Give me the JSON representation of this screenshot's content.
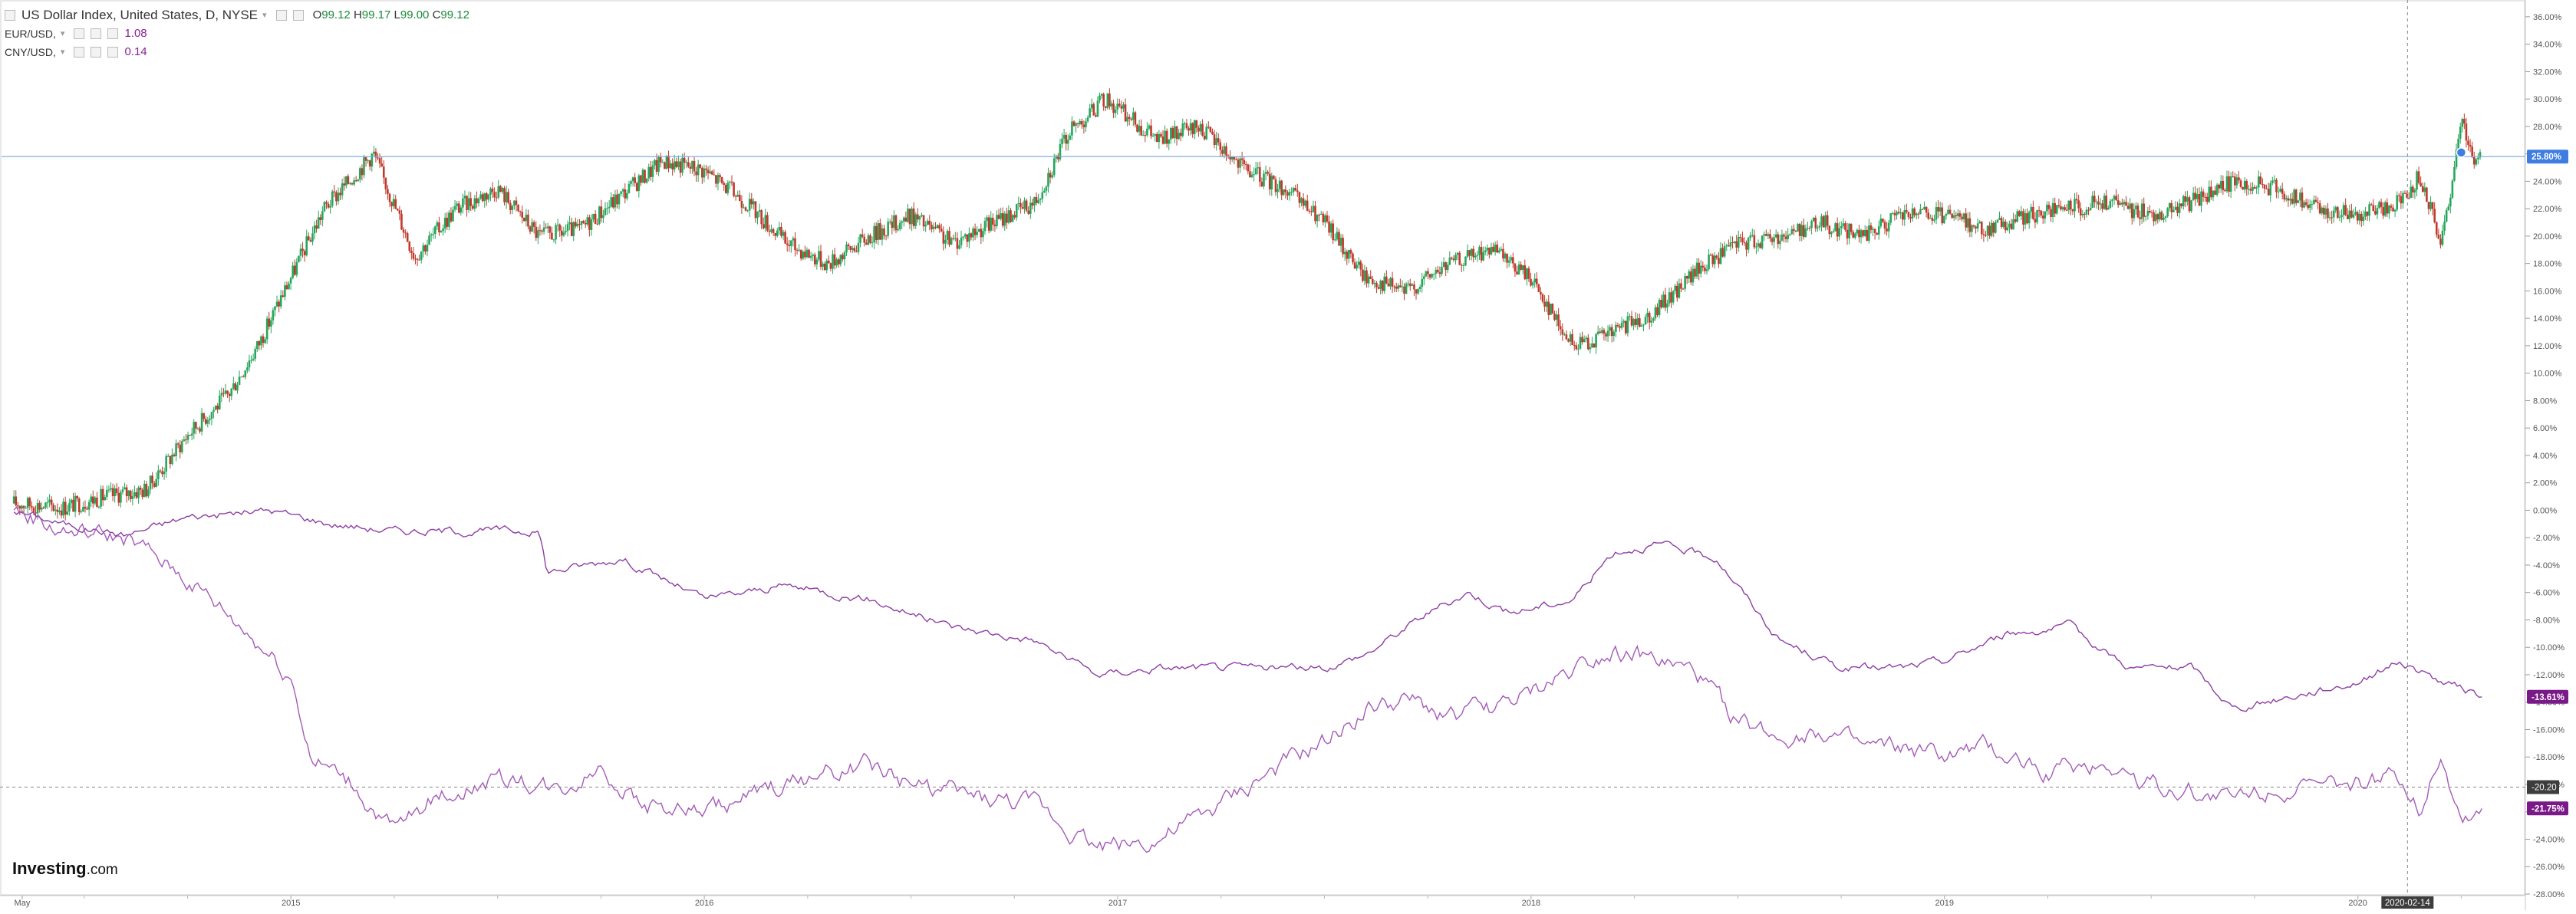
{
  "legend": {
    "main_title": "US Dollar Index, United States, D, NYSE",
    "open_label": "O",
    "open": "99.12",
    "high_label": "H",
    "high": "99.17",
    "low_label": "L",
    "low": "99.00",
    "close_label": "C",
    "close": "99.12",
    "eur_symbol": "EUR/USD,",
    "eur_value": "1.08",
    "cny_symbol": "CNY/USD,",
    "cny_value": "0.14"
  },
  "logo": {
    "text": "Investing",
    "suffix": ".com"
  },
  "chart_data": {
    "type": "line",
    "y_unit": "%",
    "ylim": [
      -28,
      37
    ],
    "y_ticks": [
      "36.00%",
      "34.00%",
      "32.00%",
      "30.00%",
      "28.00%",
      "26.00%",
      "24.00%",
      "22.00%",
      "20.00%",
      "18.00%",
      "16.00%",
      "14.00%",
      "12.00%",
      "10.00%",
      "8.00%",
      "6.00%",
      "4.00%",
      "2.00%",
      "0.00%",
      "-2.00%",
      "-4.00%",
      "-6.00%",
      "-8.00%",
      "-10.00%",
      "-12.00%",
      "-14.00%",
      "-16.00%",
      "-18.00%",
      "-20.00%",
      "-22.00%",
      "-24.00%",
      "-26.00%",
      "-28.00%"
    ],
    "x_ticks": [
      "May",
      "2015",
      "2016",
      "2017",
      "2018",
      "2019",
      "2020"
    ],
    "crosshair": {
      "date_label": "2020-02-14",
      "value_label": "-20.20",
      "value": -20.2
    },
    "price_line_label": "25.80%",
    "price_line_value": 25.8,
    "series": [
      {
        "kind": "candles",
        "color_up": "#26a65b",
        "color_down": "#c0392b",
        "last_label": "25.80%",
        "label_color": "#3f7de0",
        "points": [
          [
            2014.33,
            0.5
          ],
          [
            2014.45,
            0.2
          ],
          [
            2014.55,
            1.0
          ],
          [
            2014.65,
            1.5
          ],
          [
            2014.75,
            5.5
          ],
          [
            2014.85,
            8.5
          ],
          [
            2014.92,
            12.0
          ],
          [
            2015.0,
            17.0
          ],
          [
            2015.08,
            22.0
          ],
          [
            2015.2,
            26.0
          ],
          [
            2015.3,
            18.5
          ],
          [
            2015.4,
            22.0
          ],
          [
            2015.5,
            23.5
          ],
          [
            2015.6,
            20.0
          ],
          [
            2015.7,
            20.5
          ],
          [
            2015.8,
            23.0
          ],
          [
            2015.9,
            25.5
          ],
          [
            2016.0,
            24.8
          ],
          [
            2016.1,
            22.5
          ],
          [
            2016.2,
            19.5
          ],
          [
            2016.3,
            18.0
          ],
          [
            2016.4,
            20.0
          ],
          [
            2016.5,
            21.5
          ],
          [
            2016.6,
            19.5
          ],
          [
            2016.7,
            21.0
          ],
          [
            2016.8,
            22.5
          ],
          [
            2016.88,
            27.5
          ],
          [
            2016.97,
            30.0
          ],
          [
            2017.1,
            27.0
          ],
          [
            2017.2,
            28.0
          ],
          [
            2017.3,
            25.0
          ],
          [
            2017.4,
            23.5
          ],
          [
            2017.5,
            21.0
          ],
          [
            2017.6,
            17.0
          ],
          [
            2017.7,
            16.0
          ],
          [
            2017.8,
            18.0
          ],
          [
            2017.9,
            19.0
          ],
          [
            2018.0,
            17.0
          ],
          [
            2018.1,
            12.0
          ],
          [
            2018.2,
            13.0
          ],
          [
            2018.3,
            14.5
          ],
          [
            2018.4,
            17.5
          ],
          [
            2018.5,
            19.5
          ],
          [
            2018.6,
            20.0
          ],
          [
            2018.7,
            21.0
          ],
          [
            2018.8,
            20.0
          ],
          [
            2018.9,
            21.5
          ],
          [
            2019.0,
            21.5
          ],
          [
            2019.1,
            20.5
          ],
          [
            2019.2,
            21.5
          ],
          [
            2019.3,
            22.0
          ],
          [
            2019.4,
            22.5
          ],
          [
            2019.5,
            21.5
          ],
          [
            2019.6,
            22.5
          ],
          [
            2019.7,
            24.0
          ],
          [
            2019.8,
            23.5
          ],
          [
            2019.9,
            22.0
          ],
          [
            2020.0,
            21.5
          ],
          [
            2020.1,
            22.5
          ],
          [
            2020.15,
            24.5
          ],
          [
            2020.2,
            19.5
          ],
          [
            2020.22,
            22.0
          ],
          [
            2020.25,
            29.0
          ],
          [
            2020.28,
            25.5
          ],
          [
            2020.3,
            25.8
          ]
        ]
      },
      {
        "kind": "line",
        "name": "EUR/USD",
        "color": "#8e3fa4",
        "last_label": "-13.61%",
        "label_color": "#7a1a88",
        "points": [
          [
            2014.33,
            0.0
          ],
          [
            2014.45,
            -1.0
          ],
          [
            2014.6,
            -1.8
          ],
          [
            2014.75,
            -0.5
          ],
          [
            2014.95,
            0.0
          ],
          [
            2015.1,
            -1.0
          ],
          [
            2015.25,
            -1.5
          ],
          [
            2015.4,
            -1.5
          ],
          [
            2015.6,
            -1.5
          ],
          [
            2015.62,
            -4.5
          ],
          [
            2015.8,
            -3.5
          ],
          [
            2016.0,
            -6.5
          ],
          [
            2016.2,
            -5.5
          ],
          [
            2016.4,
            -6.5
          ],
          [
            2016.6,
            -8.5
          ],
          [
            2016.8,
            -9.5
          ],
          [
            2016.95,
            -12.0
          ],
          [
            2017.1,
            -11.5
          ],
          [
            2017.3,
            -11.5
          ],
          [
            2017.5,
            -11.5
          ],
          [
            2017.6,
            -10.5
          ],
          [
            2017.75,
            -7.5
          ],
          [
            2017.85,
            -6.0
          ],
          [
            2017.95,
            -7.5
          ],
          [
            2018.1,
            -6.5
          ],
          [
            2018.2,
            -3.0
          ],
          [
            2018.3,
            -2.5
          ],
          [
            2018.45,
            -3.5
          ],
          [
            2018.6,
            -9.5
          ],
          [
            2018.75,
            -11.5
          ],
          [
            2018.9,
            -11.5
          ],
          [
            2019.0,
            -11.0
          ],
          [
            2019.15,
            -9.0
          ],
          [
            2019.3,
            -8.5
          ],
          [
            2019.45,
            -11.5
          ],
          [
            2019.6,
            -11.5
          ],
          [
            2019.7,
            -14.5
          ],
          [
            2019.85,
            -13.5
          ],
          [
            2020.0,
            -12.5
          ],
          [
            2020.1,
            -11.0
          ],
          [
            2020.2,
            -12.5
          ],
          [
            2020.3,
            -13.61
          ]
        ]
      },
      {
        "kind": "line",
        "name": "CNY/USD",
        "color": "#a45bb8",
        "last_label": "-21.75%",
        "label_color": "#7a1a88",
        "points": [
          [
            2014.33,
            0.0
          ],
          [
            2014.45,
            -1.5
          ],
          [
            2014.6,
            -2.0
          ],
          [
            2014.75,
            -5.0
          ],
          [
            2014.9,
            -9.0
          ],
          [
            2015.0,
            -12.0
          ],
          [
            2015.05,
            -18.0
          ],
          [
            2015.15,
            -20.0
          ],
          [
            2015.25,
            -23.5
          ],
          [
            2015.35,
            -21.0
          ],
          [
            2015.45,
            -20.0
          ],
          [
            2015.55,
            -19.5
          ],
          [
            2015.65,
            -20.5
          ],
          [
            2015.75,
            -18.5
          ],
          [
            2015.85,
            -21.5
          ],
          [
            2016.0,
            -22.0
          ],
          [
            2016.1,
            -21.0
          ],
          [
            2016.25,
            -19.5
          ],
          [
            2016.4,
            -18.5
          ],
          [
            2016.5,
            -20.0
          ],
          [
            2016.65,
            -21.0
          ],
          [
            2016.8,
            -21.5
          ],
          [
            2016.95,
            -24.5
          ],
          [
            2017.1,
            -24.0
          ],
          [
            2017.2,
            -22.5
          ],
          [
            2017.35,
            -19.5
          ],
          [
            2017.5,
            -17.0
          ],
          [
            2017.6,
            -14.5
          ],
          [
            2017.7,
            -14.0
          ],
          [
            2017.8,
            -15.0
          ],
          [
            2017.9,
            -14.5
          ],
          [
            2018.0,
            -13.5
          ],
          [
            2018.1,
            -11.5
          ],
          [
            2018.2,
            -10.0
          ],
          [
            2018.3,
            -11.0
          ],
          [
            2018.4,
            -12.0
          ],
          [
            2018.5,
            -15.5
          ],
          [
            2018.6,
            -16.5
          ],
          [
            2018.7,
            -16.0
          ],
          [
            2018.8,
            -17.5
          ],
          [
            2018.9,
            -17.5
          ],
          [
            2019.0,
            -18.0
          ],
          [
            2019.1,
            -17.5
          ],
          [
            2019.25,
            -19.0
          ],
          [
            2019.4,
            -18.5
          ],
          [
            2019.5,
            -20.0
          ],
          [
            2019.6,
            -20.5
          ],
          [
            2019.7,
            -21.0
          ],
          [
            2019.8,
            -20.0
          ],
          [
            2019.9,
            -20.5
          ],
          [
            2020.0,
            -20.0
          ],
          [
            2020.1,
            -19.5
          ],
          [
            2020.15,
            -21.5
          ],
          [
            2020.2,
            -17.5
          ],
          [
            2020.25,
            -22.5
          ],
          [
            2020.3,
            -21.75
          ]
        ]
      }
    ]
  }
}
